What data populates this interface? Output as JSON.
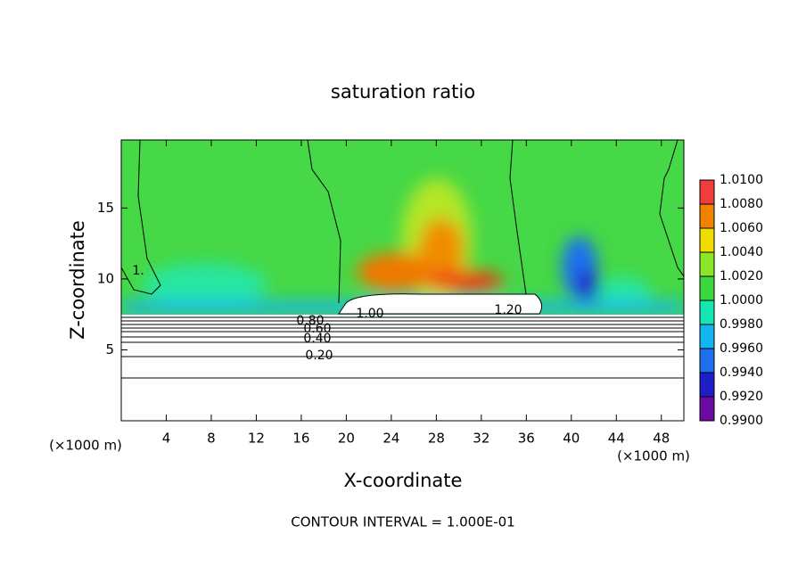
{
  "chart_data": {
    "type": "contour",
    "title": "saturation ratio",
    "x_label": "X-coordinate",
    "y_label": "Z-coordinate",
    "x_unit": "(×1000 m)",
    "y_unit": "(×1000 m)",
    "note": "CONTOUR INTERVAL = 1.000E-01",
    "xlim": [
      0,
      50
    ],
    "xticks": [
      4,
      8,
      12,
      16,
      20,
      24,
      28,
      32,
      36,
      40,
      44,
      48
    ],
    "ylim": [
      0,
      19.8
    ],
    "yticks": [
      5,
      10,
      15
    ],
    "contour_labels": [
      "1.00",
      "1.20",
      "0.80",
      "0.60",
      "0.40",
      "0.20",
      "1."
    ],
    "colorbar": {
      "ticks": [
        {
          "value": 0.99,
          "label": "0.9900"
        },
        {
          "value": 0.992,
          "label": "0.9920"
        },
        {
          "value": 0.994,
          "label": "0.9940"
        },
        {
          "value": 0.996,
          "label": "0.9960"
        },
        {
          "value": 0.998,
          "label": "0.9980"
        },
        {
          "value": 1.0,
          "label": "1.0000"
        },
        {
          "value": 1.002,
          "label": "1.0020"
        },
        {
          "value": 1.004,
          "label": "1.0040"
        },
        {
          "value": 1.006,
          "label": "1.0060"
        },
        {
          "value": 1.008,
          "label": "1.0080"
        },
        {
          "value": 1.01,
          "label": "1.0100"
        }
      ],
      "colors": [
        "#6a0aa0",
        "#1e1ec8",
        "#1e6ef0",
        "#14b4f0",
        "#14e6b4",
        "#3cd73c",
        "#8ce628",
        "#f0dc00",
        "#f08200",
        "#f03c3c"
      ]
    }
  }
}
